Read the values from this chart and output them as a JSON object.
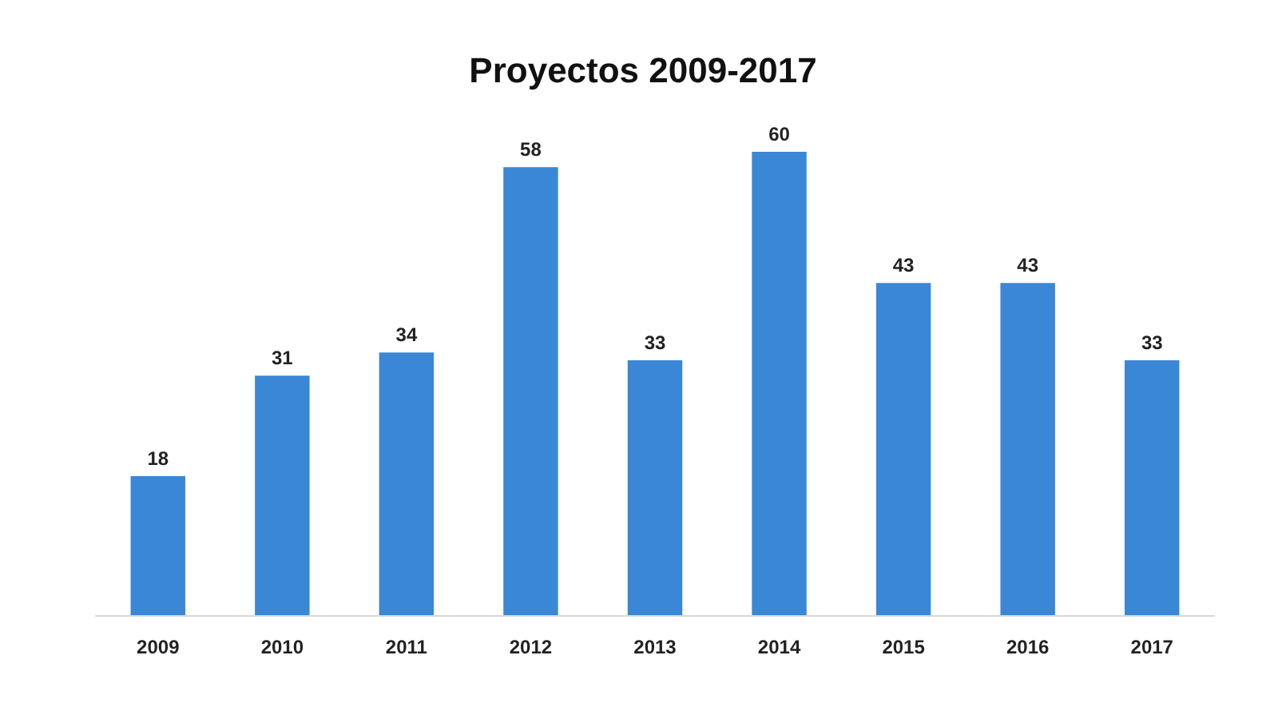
{
  "chart_data": {
    "type": "bar",
    "title": "Proyectos 2009-2017",
    "categories": [
      "2009",
      "2010",
      "2011",
      "2012",
      "2013",
      "2014",
      "2015",
      "2016",
      "2017"
    ],
    "values": [
      18,
      31,
      34,
      58,
      33,
      60,
      43,
      43,
      33
    ],
    "color": "#3a87d6",
    "data_labels": true
  }
}
